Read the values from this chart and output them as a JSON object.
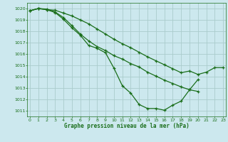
{
  "background_color": "#cce8ee",
  "grid_color": "#aacccc",
  "line_color": "#1a6e1a",
  "xlabel": "Graphe pression niveau de la mer (hPa)",
  "xlabel_color": "#1a6e1a",
  "ylim": [
    1010.5,
    1020.5
  ],
  "xlim": [
    -0.3,
    23.3
  ],
  "yticks": [
    1011,
    1012,
    1013,
    1014,
    1015,
    1016,
    1017,
    1018,
    1019,
    1020
  ],
  "xticks": [
    0,
    1,
    2,
    3,
    4,
    5,
    6,
    7,
    8,
    9,
    10,
    11,
    12,
    13,
    14,
    15,
    16,
    17,
    18,
    19,
    20,
    21,
    22,
    23
  ],
  "line1_x": [
    0,
    1,
    2,
    3,
    4,
    5,
    6,
    7,
    8,
    9,
    10,
    11,
    12,
    13,
    14,
    15,
    16,
    17,
    18,
    19,
    20,
    21,
    22,
    23
  ],
  "line1_y": [
    1019.8,
    1020.0,
    1019.9,
    1019.85,
    1019.6,
    1019.35,
    1019.0,
    1018.65,
    1018.2,
    1017.75,
    1017.3,
    1016.9,
    1016.55,
    1016.15,
    1015.75,
    1015.4,
    1015.05,
    1014.7,
    1014.35,
    1014.5,
    1014.2,
    1014.4,
    1014.8,
    1014.8
  ],
  "line2_x": [
    0,
    1,
    2,
    3,
    4,
    5,
    6,
    7,
    8,
    9,
    10,
    11,
    12,
    13,
    14,
    15,
    16,
    17,
    18,
    19,
    20
  ],
  "line2_y": [
    1019.8,
    1020.0,
    1019.95,
    1019.7,
    1019.2,
    1018.5,
    1017.75,
    1017.15,
    1016.65,
    1016.3,
    1015.85,
    1015.55,
    1015.15,
    1014.85,
    1014.4,
    1014.05,
    1013.7,
    1013.4,
    1013.1,
    1012.85,
    1012.7
  ],
  "line3_x": [
    0,
    1,
    2,
    3,
    4,
    5,
    6,
    7,
    8,
    9,
    10,
    11,
    12,
    13,
    14,
    15,
    16,
    17,
    18,
    19,
    20
  ],
  "line3_y": [
    1019.8,
    1020.0,
    1019.9,
    1019.65,
    1019.05,
    1018.3,
    1017.65,
    1016.75,
    1016.5,
    1016.1,
    1014.75,
    1013.2,
    1012.55,
    1011.55,
    1011.2,
    1011.2,
    1011.05,
    1011.5,
    1011.85,
    1012.85,
    1013.75
  ]
}
